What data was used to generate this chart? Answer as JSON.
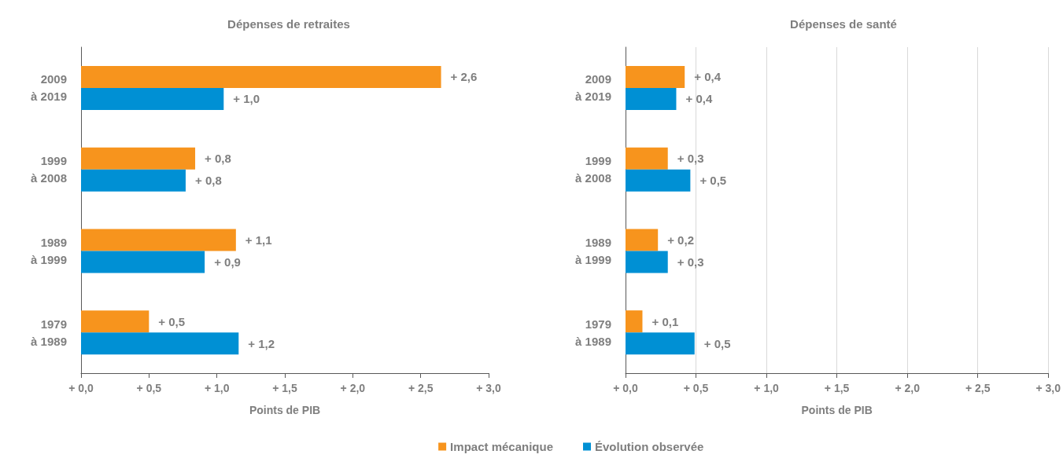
{
  "chart_data": [
    {
      "type": "bar",
      "orientation": "horizontal",
      "title": "Dépenses de retraites",
      "xlabel": "Points de PIB",
      "categories": [
        "2009\nà 2019",
        "1999\nà 2008",
        "1989\nà 1999",
        "1979\nà 1989"
      ],
      "series": [
        {
          "name": "Impact mécanique",
          "color": "#f7941d",
          "values": [
            2.65,
            0.84,
            1.14,
            0.5
          ],
          "value_labels": [
            "+ 2,6",
            "+ 0,8",
            "+ 1,1",
            "+ 0,5"
          ]
        },
        {
          "color": "#0090d4",
          "values": [
            1.05,
            0.77,
            0.91,
            1.16
          ],
          "value_labels": [
            "+ 1,0",
            "+ 0,8",
            "+ 0,9",
            "+ 1,2"
          ]
        }
      ],
      "xlim": [
        0,
        3
      ],
      "xticks": [
        {
          "value": 0,
          "label": "+ 0,0"
        },
        {
          "value": 0.5,
          "label": "+ 0,5"
        },
        {
          "value": 1,
          "label": "+ 1,0"
        },
        {
          "value": 1.5,
          "label": "+ 1,5"
        },
        {
          "value": 2,
          "label": "+ 2,0"
        },
        {
          "value": 2.5,
          "label": "+ 2,5"
        },
        {
          "value": 3,
          "label": "+ 3,0"
        }
      ],
      "grid": false,
      "legend": "bottom"
    },
    {
      "type": "bar",
      "orientation": "horizontal",
      "title": "Dépenses de santé",
      "xlabel": "Points de PIB",
      "categories": [
        "2009\nà 2019",
        "1999\nà 2008",
        "1989\nà 1999",
        "1979\nà 1989"
      ],
      "series": [
        {
          "color": "#f7941d",
          "values": [
            0.42,
            0.3,
            0.23,
            0.12
          ],
          "value_labels": [
            "+ 0,4",
            "+ 0,3",
            "+ 0,2",
            "+ 0,1"
          ]
        },
        {
          "name": "Évolution observée",
          "color": "#0090d4",
          "values": [
            0.36,
            0.46,
            0.3,
            0.49
          ],
          "value_labels": [
            "+ 0,4",
            "+ 0,5",
            "+ 0,3",
            "+ 0,5"
          ]
        }
      ],
      "xlim": [
        0,
        3
      ],
      "xticks": [
        {
          "value": 0,
          "label": "+ 0,0"
        },
        {
          "value": 0.5,
          "label": "+ 0,5"
        },
        {
          "value": 1,
          "label": "+ 1,0"
        },
        {
          "value": 1.5,
          "label": "+ 1,5"
        },
        {
          "value": 2,
          "label": "+ 2,0"
        },
        {
          "value": 2.5,
          "label": "+ 2,5"
        },
        {
          "value": 3,
          "label": "+ 3,0"
        }
      ],
      "grid": "x",
      "legend": "bottom"
    }
  ]
}
